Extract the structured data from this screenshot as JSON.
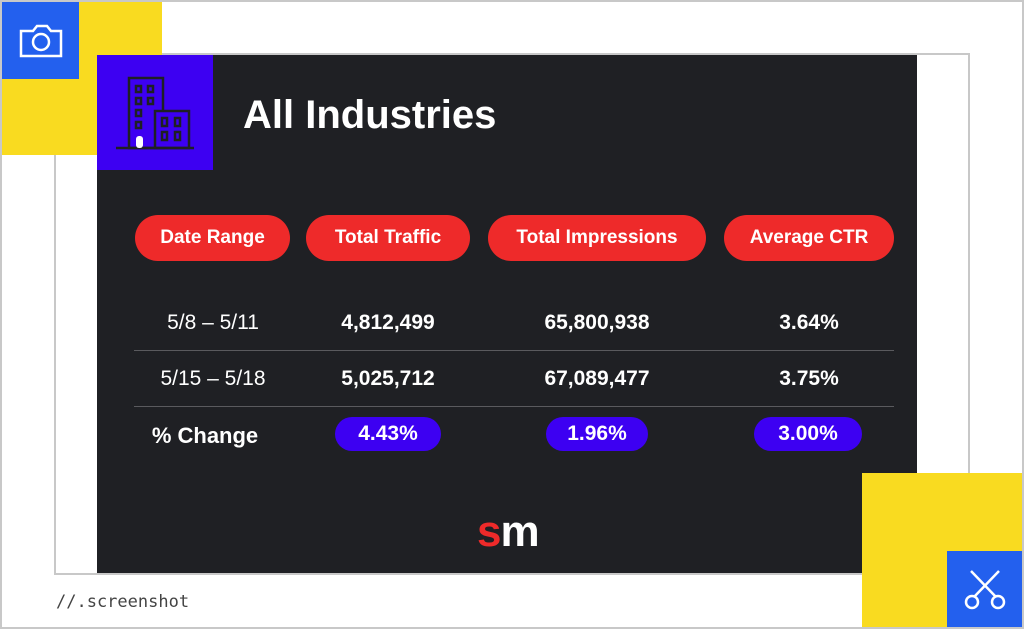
{
  "slide": {
    "title": "All Industries",
    "headers": [
      "Date Range",
      "Total Traffic",
      "Total Impressions",
      "Average CTR"
    ],
    "rows": [
      [
        "5/8 – 5/11",
        "4,812,499",
        "65,800,938",
        "3.64%"
      ],
      [
        "5/15 – 5/18",
        "5,025,712",
        "67,089,477",
        "3.75%"
      ]
    ],
    "change": {
      "label": "% Change",
      "values": [
        "4.43%",
        "1.96%",
        "3.00%"
      ]
    },
    "logo": {
      "s": "s",
      "m": "m"
    }
  },
  "caption": "//.screenshot",
  "colors": {
    "header_pill": "#ee2a2a",
    "change_pill": "#3d00f2",
    "accent_yellow": "#f9db20",
    "accent_blue": "#2360ee",
    "panel": "#1f2024"
  },
  "icons": {
    "top_left": "camera-icon",
    "bottom_right": "scissors-icon",
    "slide": "building-icon"
  }
}
